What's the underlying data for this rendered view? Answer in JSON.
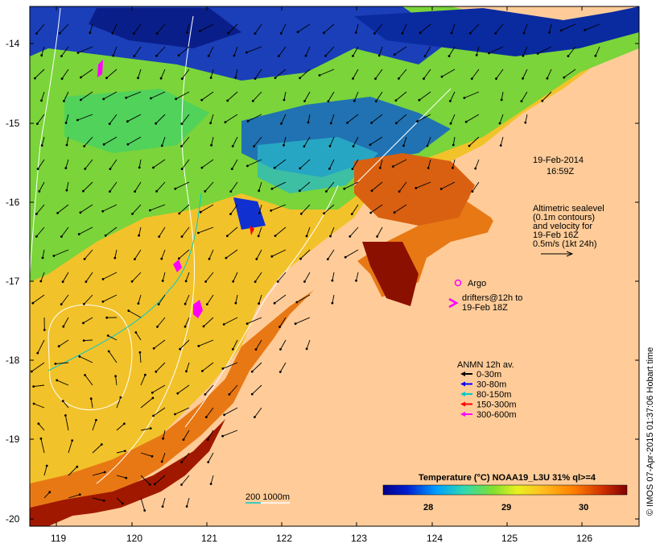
{
  "map": {
    "date_label": "19-Feb-2014",
    "time_label": "16:59Z",
    "altimetry_lines": [
      "Altimetric sealevel",
      "(0.1m contours)",
      "and velocity for",
      "19-Feb 16Z",
      "0.5m/s (1kt 24h)"
    ],
    "argo_label": "Argo",
    "drifters_lines": [
      "drifters@12h to",
      "19-Feb 18Z"
    ],
    "anmn_title": "ANMN 12h av.",
    "anmn_legend": [
      {
        "label": "0-30m",
        "color": "#000000"
      },
      {
        "label": "30-80m",
        "color": "#0000ff"
      },
      {
        "label": "80-150m",
        "color": "#00cccc"
      },
      {
        "label": "150-300m",
        "color": "#ff0000"
      },
      {
        "label": "300-600m",
        "color": "#ff00ff"
      }
    ],
    "colorbar_title": "Temperature (°C) NOAA19_L3U 31% ql>=4",
    "colorbar_ticks": [
      "28",
      "29",
      "30"
    ],
    "bathy_label": "200  1000m",
    "credit": "© IMOS 07-Apr-2015 01:37:06 Hobart time",
    "x_ticks": [
      "119",
      "120",
      "121",
      "122",
      "123",
      "124",
      "125",
      "126"
    ],
    "y_ticks": [
      "-14",
      "-15",
      "-16",
      "-17",
      "-18",
      "-19",
      "-20"
    ],
    "colors": {
      "land": "#ffcc99",
      "frame": "#000000",
      "bathy_200": "#00cccc",
      "bathy_1000": "#ffffff",
      "argo": "#ff00ff"
    }
  },
  "chart_data": {
    "type": "heatmap",
    "title": "Temperature (°C) NOAA19_L3U 31% ql>=4",
    "xlabel": "",
    "ylabel": "",
    "xlim": [
      118.6,
      126.7
    ],
    "ylim": [
      -20.1,
      -13.7
    ],
    "colorbar_range": [
      27.5,
      30.5
    ],
    "colorbar_ticks": [
      28,
      29,
      30
    ]
  }
}
